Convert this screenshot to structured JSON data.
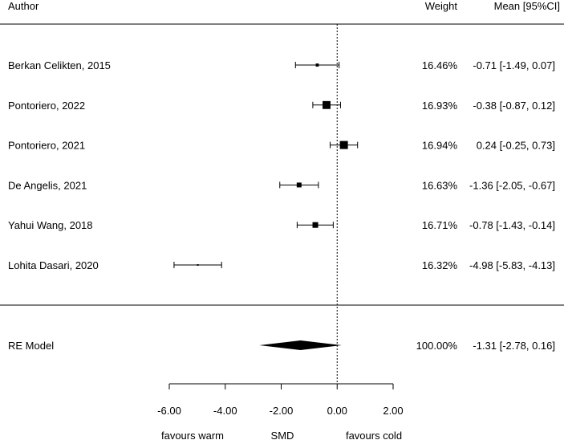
{
  "chart_data": {
    "type": "forest",
    "headers": {
      "author": "Author",
      "weight": "Weight",
      "ci": "Mean [95%CI]"
    },
    "studies": [
      {
        "author": "Berkan Celikten, 2015",
        "estimate": -0.71,
        "lower": -1.49,
        "upper": 0.07,
        "weight": "16.46%",
        "ci_text": "-0.71 [-1.49,  0.07]"
      },
      {
        "author": "Pontoriero, 2022",
        "estimate": -0.38,
        "lower": -0.87,
        "upper": 0.12,
        "weight": "16.93%",
        "ci_text": "-0.38 [-0.87,  0.12]"
      },
      {
        "author": "Pontoriero, 2021",
        "estimate": 0.24,
        "lower": -0.25,
        "upper": 0.73,
        "weight": "16.94%",
        "ci_text": "0.24 [-0.25,  0.73]"
      },
      {
        "author": "De Angelis, 2021",
        "estimate": -1.36,
        "lower": -2.05,
        "upper": -0.67,
        "weight": "16.63%",
        "ci_text": "-1.36 [-2.05, -0.67]"
      },
      {
        "author": "Yahui Wang, 2018",
        "estimate": -0.78,
        "lower": -1.43,
        "upper": -0.14,
        "weight": "16.71%",
        "ci_text": "-0.78 [-1.43, -0.14]"
      },
      {
        "author": "Lohita Dasari, 2020",
        "estimate": -4.98,
        "lower": -5.83,
        "upper": -4.13,
        "weight": "16.32%",
        "ci_text": "-4.98 [-5.83, -4.13]"
      }
    ],
    "summary": {
      "label": "RE Model",
      "estimate": -1.31,
      "lower": -2.78,
      "upper": 0.16,
      "weight": "100.00%",
      "ci_text": "-1.31 [-2.78,  0.16]"
    },
    "x_ticks": [
      -6,
      -4,
      -2,
      0,
      2
    ],
    "x_tick_labels": [
      "-6.00",
      "-4.00",
      "-2.00",
      "0.00",
      "2.00"
    ],
    "xlim": [
      -6,
      2
    ],
    "reference_line": 0,
    "xlabel": "SMD",
    "left_label": "favours warm",
    "right_label": "favours cold"
  }
}
